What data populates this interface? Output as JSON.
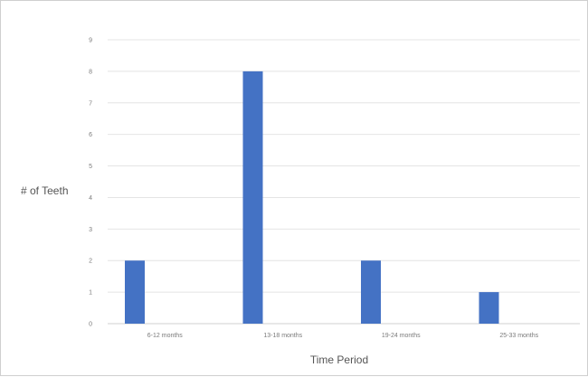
{
  "chart_data": {
    "type": "bar",
    "title": "",
    "xlabel": "Time Period",
    "ylabel": "# of Teeth",
    "categories": [
      "6-12 months",
      "13-18 months",
      "19-24 months",
      "25-33 months"
    ],
    "values": [
      2,
      8,
      2,
      1
    ],
    "ylim": [
      0,
      9
    ],
    "yticks": [
      0,
      1,
      2,
      3,
      4,
      5,
      6,
      7,
      8,
      9
    ],
    "grid": true,
    "legend": "none",
    "bar_color": "#4472c4",
    "grid_color": "#e4e4e4"
  }
}
